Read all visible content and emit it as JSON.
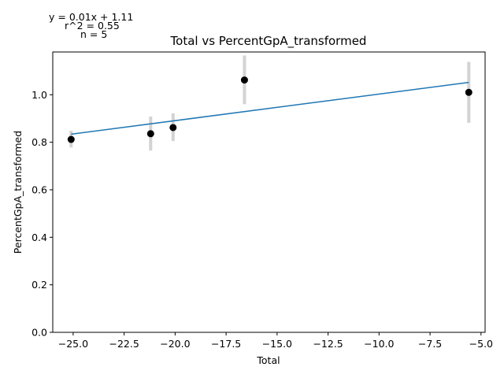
{
  "chart_data": {
    "type": "scatter",
    "title": "Total vs PercentGpA_transformed",
    "xlabel": "Total",
    "ylabel": "PercentGpA_transformed",
    "xlim": [
      -26.0,
      -4.8
    ],
    "ylim": [
      0.0,
      1.18
    ],
    "x_ticks": [
      -25.0,
      -22.5,
      -20.0,
      -17.5,
      -15.0,
      -12.5,
      -10.0,
      -7.5,
      -5.0
    ],
    "x_tick_labels": [
      "−25.0",
      "−22.5",
      "−20.0",
      "−17.5",
      "−15.0",
      "−12.5",
      "−10.0",
      "−7.5",
      "−5.0"
    ],
    "y_ticks": [
      0.0,
      0.2,
      0.4,
      0.6,
      0.8,
      1.0
    ],
    "y_tick_labels": [
      "0.0",
      "0.2",
      "0.4",
      "0.6",
      "0.8",
      "1.0"
    ],
    "points": [
      {
        "x": -25.1,
        "y": 0.812,
        "err_low": 0.778,
        "err_high": 0.848
      },
      {
        "x": -21.2,
        "y": 0.836,
        "err_low": 0.765,
        "err_high": 0.908
      },
      {
        "x": -20.1,
        "y": 0.862,
        "err_low": 0.805,
        "err_high": 0.922
      },
      {
        "x": -16.6,
        "y": 1.062,
        "err_low": 0.96,
        "err_high": 1.165
      },
      {
        "x": -5.6,
        "y": 1.01,
        "err_low": 0.882,
        "err_high": 1.138
      }
    ],
    "fit_line": {
      "x": [
        -25.1,
        -5.6
      ],
      "y": [
        0.834,
        1.052
      ]
    },
    "annotations": [
      "y = 0.01x + 1.11",
      "r^2 = 0.55",
      "n = 5"
    ],
    "grid": false,
    "colors": {
      "points": "#000000",
      "errorbars": "#d3d3d3",
      "fit": "#1f77b4"
    }
  }
}
